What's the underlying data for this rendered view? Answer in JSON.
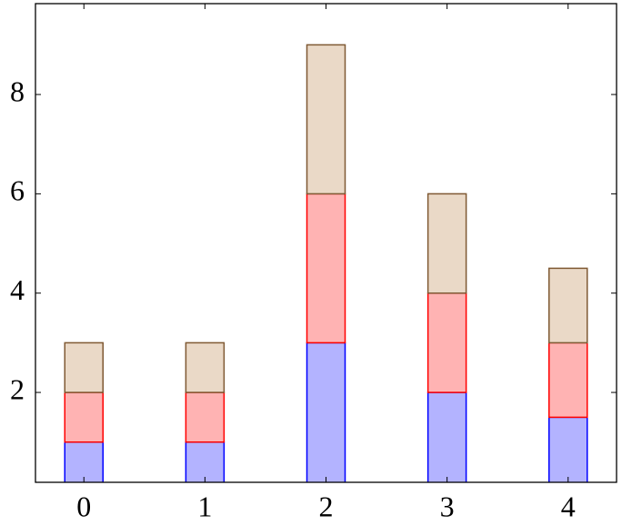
{
  "chart_data": {
    "type": "stacked-bar",
    "x": [
      0,
      1,
      2,
      3,
      4
    ],
    "series": [
      {
        "color": "#b3b3ff",
        "edgecolor": "#0000ff",
        "values": [
          1,
          1,
          3,
          2,
          1.5
        ]
      },
      {
        "color": "#ffb3b3",
        "edgecolor": "#ff0000",
        "values": [
          1,
          1,
          3,
          2,
          1.5
        ]
      },
      {
        "color": "#ead9c7",
        "edgecolor": "#7f5933",
        "values": [
          1,
          1,
          3,
          2,
          1.5
        ]
      }
    ],
    "xlim": [
      -0.4,
      4.4
    ],
    "ylim": [
      0.19,
      9.83
    ],
    "xticks": [
      0,
      1,
      2,
      3,
      4
    ],
    "yticks": [
      2,
      4,
      6,
      8
    ],
    "grid": false
  }
}
